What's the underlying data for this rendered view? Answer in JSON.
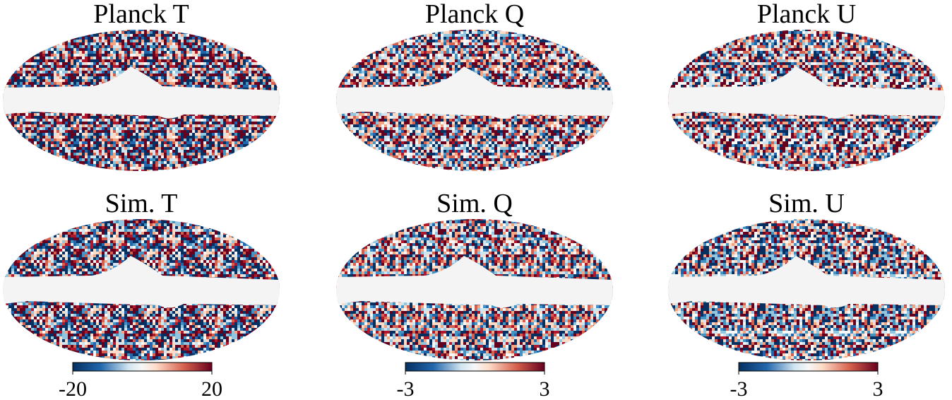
{
  "panels": [
    {
      "title": "Planck T"
    },
    {
      "title": "Planck Q"
    },
    {
      "title": "Planck U"
    },
    {
      "title": "Sim. T"
    },
    {
      "title": "Sim. Q"
    },
    {
      "title": "Sim. U"
    }
  ],
  "colorbars": [
    {
      "ticks": [
        -20,
        20
      ]
    },
    {
      "ticks": [
        -3,
        3
      ]
    },
    {
      "ticks": [
        -3,
        3
      ]
    }
  ]
}
